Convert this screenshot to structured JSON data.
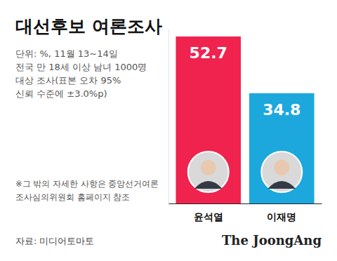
{
  "chart_data": {
    "type": "bar",
    "title": "대선후보 여론조사",
    "subtitle": [
      "단위: %, 11월 13~14일",
      "전국 만 18세 이상 남녀 1000명",
      "대상 조사(표본 오차 95%",
      "신뢰 수준에 ±3.0%p)"
    ],
    "annotations": [
      "※그 밖의 자세한 사항은 중앙선거여론",
      "조사심의위원회 홈페이지 참조"
    ],
    "source": "자료: 미디어토마토",
    "logo": "The JoongAng",
    "categories": [
      "윤석열",
      "이재명"
    ],
    "values": [
      52.7,
      34.8
    ],
    "colors": [
      "#f0234f",
      "#1ca8dd"
    ],
    "ylim": [
      0,
      55
    ],
    "data_labels": true,
    "tick_labels": "x",
    "grid": false
  }
}
